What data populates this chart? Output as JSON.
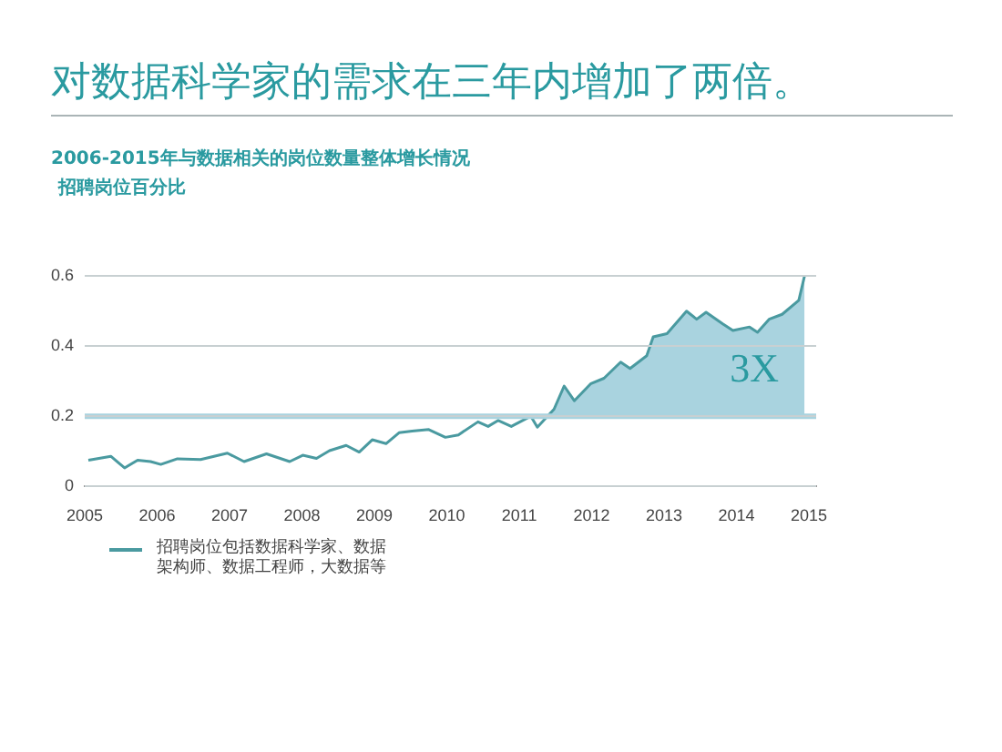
{
  "chart_data": {
    "type": "line",
    "title": "对数据科学家的需求在三年内增加了两倍。",
    "subtitle": "2006-2015年与数据相关的岗位数量整体增长情况",
    "ylabel": "招聘岗位百分比",
    "x": [
      2005.05,
      2005.36,
      2005.55,
      2005.73,
      2005.91,
      2006.05,
      2006.28,
      2006.6,
      2006.97,
      2007.2,
      2007.51,
      2007.83,
      2008.01,
      2008.2,
      2008.38,
      2008.61,
      2008.79,
      2008.97,
      2009.16,
      2009.34,
      2009.52,
      2009.75,
      2009.98,
      2010.16,
      2010.43,
      2010.57,
      2010.71,
      2010.89,
      2011.16,
      2011.25,
      2011.48,
      2011.62,
      2011.76,
      2011.99,
      2012.17,
      2012.4,
      2012.53,
      2012.76,
      2012.85,
      2013.04,
      2013.31,
      2013.45,
      2013.58,
      2013.81,
      2013.95,
      2014.18,
      2014.29,
      2014.45,
      2014.63,
      2014.86,
      2014.94
    ],
    "series": [
      {
        "name": "招聘岗位包括数据科学家、数据架构师、数据工程师，大数据等",
        "color": "#4a9aa0",
        "values": [
          0.075,
          0.086,
          0.053,
          0.075,
          0.071,
          0.063,
          0.079,
          0.077,
          0.095,
          0.071,
          0.093,
          0.071,
          0.089,
          0.08,
          0.102,
          0.117,
          0.098,
          0.133,
          0.122,
          0.153,
          0.158,
          0.162,
          0.14,
          0.147,
          0.184,
          0.171,
          0.188,
          0.171,
          0.2,
          0.169,
          0.22,
          0.286,
          0.244,
          0.293,
          0.308,
          0.354,
          0.336,
          0.372,
          0.426,
          0.435,
          0.499,
          0.476,
          0.496,
          0.463,
          0.444,
          0.454,
          0.439,
          0.476,
          0.49,
          0.53,
          0.6
        ]
      }
    ],
    "xlim": [
      2005,
      2015.1
    ],
    "xticks": [
      2005,
      2006,
      2007,
      2008,
      2009,
      2010,
      2011,
      2012,
      2013,
      2014,
      2015
    ],
    "ylim": [
      0,
      0.6
    ],
    "yticks": [
      0,
      0.2,
      0.4,
      0.6
    ],
    "ref_lines": [
      {
        "axis": "y",
        "value": 0.2,
        "color": "#a9d3df"
      }
    ],
    "annotations": [
      "3X"
    ],
    "grid": "y",
    "legend": "bottom",
    "marker": "none",
    "line_style": "solid"
  }
}
